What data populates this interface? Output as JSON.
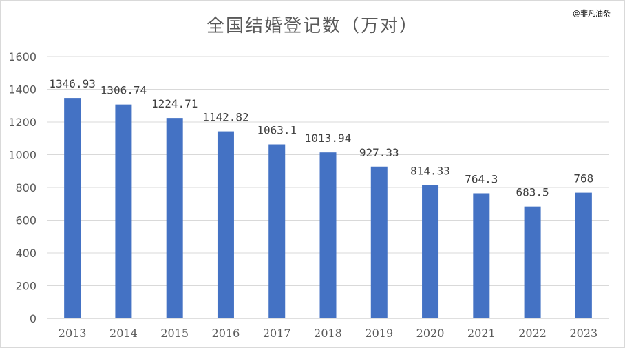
{
  "watermark": "@非凡油条",
  "colors": {
    "bar": "#4472c4",
    "grid": "#d9d9d9",
    "axis": "#bfbfbf",
    "text": "#595959"
  },
  "chart_data": {
    "type": "bar",
    "title": "全国结婚登记数（万对）",
    "xlabel": "",
    "ylabel": "",
    "ylim": [
      0,
      1600
    ],
    "yticks": [
      0,
      200,
      400,
      600,
      800,
      1000,
      1200,
      1400,
      1600
    ],
    "grid": true,
    "legend": "none",
    "categories": [
      "2013",
      "2014",
      "2015",
      "2016",
      "2017",
      "2018",
      "2019",
      "2020",
      "2021",
      "2022",
      "2023"
    ],
    "values": [
      1346.93,
      1306.74,
      1224.71,
      1142.82,
      1063.1,
      1013.94,
      927.33,
      814.33,
      764.3,
      683.5,
      768
    ],
    "data_labels": [
      "1346.93",
      "1306.74",
      "1224.71",
      "1142.82",
      "1063.1",
      "1013.94",
      "927.33",
      "814.33",
      "764.3",
      "683.5",
      "768"
    ]
  }
}
